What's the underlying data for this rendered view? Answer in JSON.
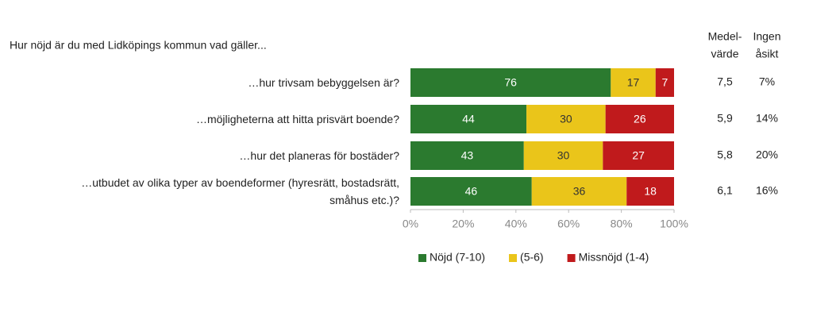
{
  "chart_data": {
    "type": "stacked-bar-horizontal",
    "title": "Hur nöjd är du med Lidköpings kommun vad gäller...",
    "categories": [
      "…hur trivsam bebyggelsen är?",
      "…möjligheterna att hitta prisvärt boende?",
      "…hur det planeras för bostäder?",
      "…utbudet av olika typer av boendeformer (hyresrätt, bostadsrätt,\nsmåhus etc.)?"
    ],
    "series": [
      {
        "name": "Nöjd (7-10)",
        "color": "#2b7a2f",
        "label_color": "#ffffff",
        "values": [
          76,
          44,
          43,
          46
        ]
      },
      {
        "name": "(5-6)",
        "color": "#eac51a",
        "label_color": "#333333",
        "values": [
          17,
          30,
          30,
          36
        ]
      },
      {
        "name": "Missnöjd (1-4)",
        "color": "#c01a1c",
        "label_color": "#ffffff",
        "values": [
          7,
          26,
          27,
          18
        ]
      }
    ],
    "xlim": [
      0,
      100
    ],
    "xticks": [
      {
        "value": 0,
        "label": "0%"
      },
      {
        "value": 20,
        "label": "20%"
      },
      {
        "value": 40,
        "label": "40%"
      },
      {
        "value": 60,
        "label": "60%"
      },
      {
        "value": 80,
        "label": "80%"
      },
      {
        "value": 100,
        "label": "100%"
      }
    ],
    "extra_columns": [
      {
        "header": [
          "Medel-",
          "värde"
        ],
        "values": [
          "7,5",
          "5,9",
          "5,8",
          "6,1"
        ]
      },
      {
        "header": [
          "Ingen",
          "åsikt"
        ],
        "values": [
          "7%",
          "14%",
          "20%",
          "16%"
        ]
      }
    ]
  }
}
